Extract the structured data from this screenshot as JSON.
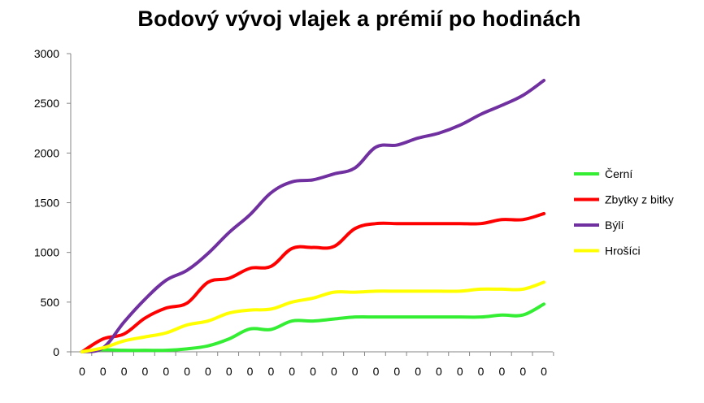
{
  "chart_data": {
    "type": "line",
    "title": "Bodový vývoj vlajek a prémií po hodinách",
    "xlabel": "",
    "ylabel": "",
    "ylim": [
      0,
      3000
    ],
    "yticks": [
      "0",
      "500",
      "1000",
      "1500",
      "2000",
      "2500",
      "3000"
    ],
    "categories": [
      "0",
      "0",
      "0",
      "0",
      "0",
      "0",
      "0",
      "0",
      "0",
      "0",
      "0",
      "0",
      "0",
      "0",
      "0",
      "0",
      "0",
      "0",
      "0",
      "0",
      "0",
      "0",
      "0"
    ],
    "grid": false,
    "legend_position": "right",
    "series": [
      {
        "name": "Černí",
        "color": "#33ee33",
        "values": [
          0,
          20,
          15,
          15,
          15,
          30,
          60,
          130,
          230,
          225,
          310,
          310,
          330,
          350,
          350,
          350,
          350,
          350,
          350,
          350,
          370,
          370,
          480
        ]
      },
      {
        "name": "Zbytky z bitky",
        "color": "#ff0000",
        "values": [
          0,
          130,
          180,
          340,
          440,
          490,
          700,
          740,
          840,
          860,
          1040,
          1050,
          1060,
          1240,
          1290,
          1290,
          1290,
          1290,
          1290,
          1290,
          1330,
          1330,
          1390
        ]
      },
      {
        "name": "Býlí",
        "color": "#7030a0",
        "values": [
          0,
          40,
          300,
          530,
          720,
          820,
          990,
          1200,
          1380,
          1600,
          1710,
          1730,
          1790,
          1850,
          2060,
          2080,
          2150,
          2200,
          2280,
          2390,
          2480,
          2580,
          2730
        ]
      },
      {
        "name": "Hrošíci",
        "color": "#ffff00",
        "values": [
          0,
          40,
          110,
          150,
          190,
          270,
          310,
          390,
          420,
          430,
          500,
          540,
          600,
          600,
          610,
          610,
          610,
          610,
          610,
          630,
          630,
          630,
          700
        ]
      }
    ]
  }
}
